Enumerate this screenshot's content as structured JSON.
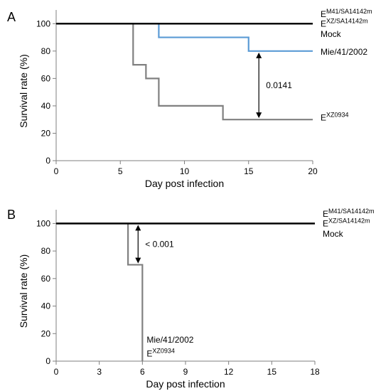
{
  "chart_data": [
    {
      "panel": "A",
      "type": "line",
      "step": true,
      "xlabel": "Day post infection",
      "ylabel": "Survival rate (%)",
      "xlim": [
        0,
        20
      ],
      "ylim": [
        0,
        110
      ],
      "xticks": [
        0,
        5,
        10,
        15,
        20
      ],
      "yticks": [
        0,
        20,
        40,
        60,
        80,
        100
      ],
      "series": [
        {
          "key": "black",
          "color": "#000000",
          "x": [
            0,
            20
          ],
          "y": [
            100,
            100
          ],
          "labels": [
            {
              "base": "E",
              "sup": "M41/SA14142m",
              "y": 107.5
            },
            {
              "base": "E",
              "sup": "XZ/SA14142m",
              "y": 100.5
            },
            {
              "base": "Mock",
              "sup": "",
              "y": 93
            }
          ]
        },
        {
          "key": "blue",
          "color": "#5b9bd5",
          "x": [
            0,
            8,
            15,
            20
          ],
          "y": [
            100,
            90,
            80,
            80
          ],
          "labels": [
            {
              "base": "Mie/41/2002",
              "sup": "",
              "y": 80
            }
          ]
        },
        {
          "key": "grey",
          "color": "#808080",
          "x": [
            0,
            6,
            7,
            8,
            13,
            20
          ],
          "y": [
            100,
            70,
            60,
            40,
            30,
            30
          ],
          "labels": [
            {
              "base": "E",
              "sup": "XZ0934",
              "y": 32
            }
          ]
        }
      ],
      "annotation": {
        "text": "0.0141",
        "x": 15.8,
        "y1": 80,
        "y2": 30
      }
    },
    {
      "panel": "B",
      "type": "line",
      "step": true,
      "xlabel": "Day post infection",
      "ylabel": "Survival rate (%)",
      "xlim": [
        0,
        18
      ],
      "ylim": [
        0,
        110
      ],
      "xticks": [
        0,
        3,
        6,
        9,
        12,
        15,
        18
      ],
      "yticks": [
        0,
        20,
        40,
        60,
        80,
        100
      ],
      "series": [
        {
          "key": "black",
          "color": "#000000",
          "x": [
            0,
            18
          ],
          "y": [
            100,
            100
          ],
          "labels": [
            {
              "base": "E",
              "sup": "M41/SA14142m",
              "y": 107.5
            },
            {
              "base": "E",
              "sup": "XZ/SA14142m",
              "y": 100.5
            },
            {
              "base": "Mock",
              "sup": "",
              "y": 93
            }
          ]
        },
        {
          "key": "grey",
          "color": "#808080",
          "x": [
            0,
            5,
            6,
            6
          ],
          "y": [
            100,
            70,
            70,
            0
          ],
          "labels": [
            {
              "base": "Mie/41/2002",
              "sup": "",
              "y": 16,
              "x": 6.3
            },
            {
              "base": "E",
              "sup": "XZ0934",
              "y": 6,
              "x": 6.3
            }
          ]
        }
      ],
      "annotation": {
        "text": "< 0.001",
        "x": 5.7,
        "y1": 100,
        "y2": 70
      }
    }
  ]
}
